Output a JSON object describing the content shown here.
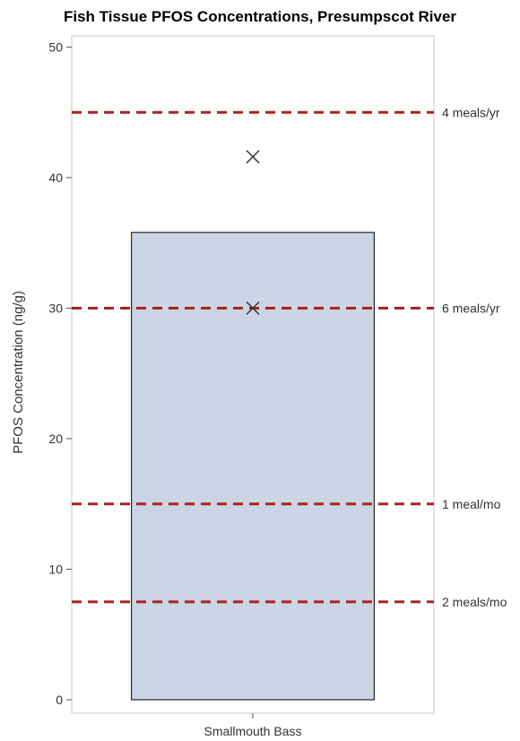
{
  "chart_data": {
    "type": "bar",
    "title": "Fish Tissue PFOS Concentrations, Presumpscot River",
    "xlabel": "",
    "ylabel": "PFOS Concentration (ng/g)",
    "ylim": [
      0,
      51
    ],
    "yticks": [
      "0",
      "10",
      "20",
      "30",
      "40",
      "50"
    ],
    "categories": [
      "Smallmouth Bass"
    ],
    "values": [
      35.8
    ],
    "bar_color": "#cbd5e5",
    "bar_edge_color": "#000000",
    "points": [
      {
        "category": "Smallmouth Bass",
        "value": 41.6
      },
      {
        "category": "Smallmouth Bass",
        "value": 30.0
      }
    ],
    "reference_lines": [
      {
        "value": 45,
        "label": "4 meals/yr"
      },
      {
        "value": 30,
        "label": "6 meals/yr"
      },
      {
        "value": 15,
        "label": "1 meal/mo"
      },
      {
        "value": 7.5,
        "label": "2 meals/mo"
      }
    ],
    "reference_line_color": "#aa2222",
    "grid": false,
    "legend": "none"
  }
}
